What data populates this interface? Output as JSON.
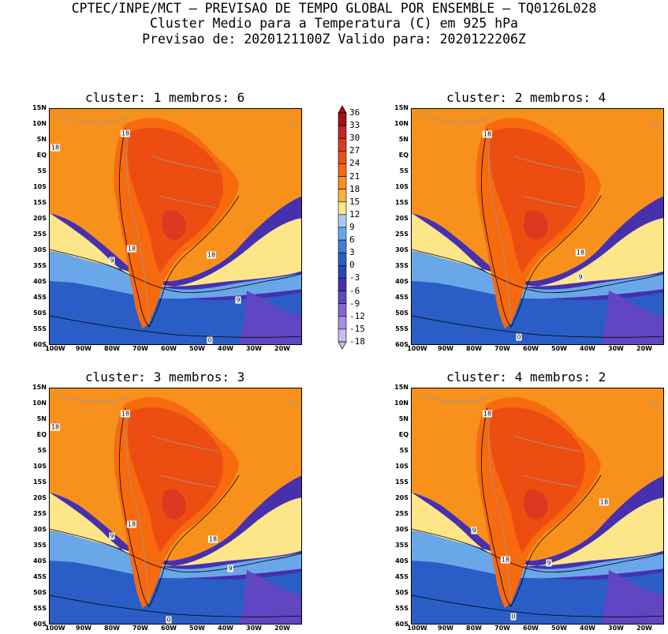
{
  "header": {
    "line1": "CPTEC/INPE/MCT – PREVISAO DE TEMPO GLOBAL POR ENSEMBLE – TQ0126L028",
    "line2": "Cluster Medio para a Temperatura (C) em 925 hPa",
    "line3": "Previsao de: 2020121100Z   Valido para: 2020122206Z"
  },
  "panels": [
    {
      "title": "cluster: 1   membros: 6",
      "contour_labels": [
        "18",
        "18",
        "18",
        "18",
        "9",
        "9",
        "0"
      ]
    },
    {
      "title": "cluster: 2   membros: 4",
      "contour_labels": [
        "18",
        "18",
        "9",
        "0"
      ]
    },
    {
      "title": "cluster: 3   membros: 3",
      "contour_labels": [
        "18",
        "18",
        "18",
        "18",
        "9",
        "9",
        "0"
      ]
    },
    {
      "title": "cluster: 4   membros: 2",
      "contour_labels": [
        "18",
        "18",
        "18",
        "9",
        "9",
        "0"
      ]
    }
  ],
  "axes": {
    "lat_ticks": [
      "15N",
      "10N",
      "5N",
      "EQ",
      "5S",
      "10S",
      "15S",
      "20S",
      "25S",
      "30S",
      "35S",
      "40S",
      "45S",
      "50S",
      "55S",
      "60S"
    ],
    "lon_ticks": [
      "100W",
      "90W",
      "80W",
      "70W",
      "60W",
      "50W",
      "40W",
      "30W",
      "20W"
    ]
  },
  "colorbar": {
    "labels": [
      "36",
      "33",
      "30",
      "27",
      "24",
      "21",
      "18",
      "15",
      "12",
      "9",
      "6",
      "3",
      "0",
      "-3",
      "-6",
      "-9",
      "-12",
      "-15",
      "-18"
    ],
    "colors": [
      "#a50f15",
      "#c3232a",
      "#dc3a20",
      "#ee4d12",
      "#f76a0e",
      "#f8901c",
      "#fbb040",
      "#fde68a",
      "#a8cdf5",
      "#6aa7e8",
      "#3f7fd8",
      "#2a5ec6",
      "#2a44b5",
      "#4630b0",
      "#6146c2",
      "#8366d0",
      "#a78ee0",
      "#cbbbee"
    ]
  }
}
